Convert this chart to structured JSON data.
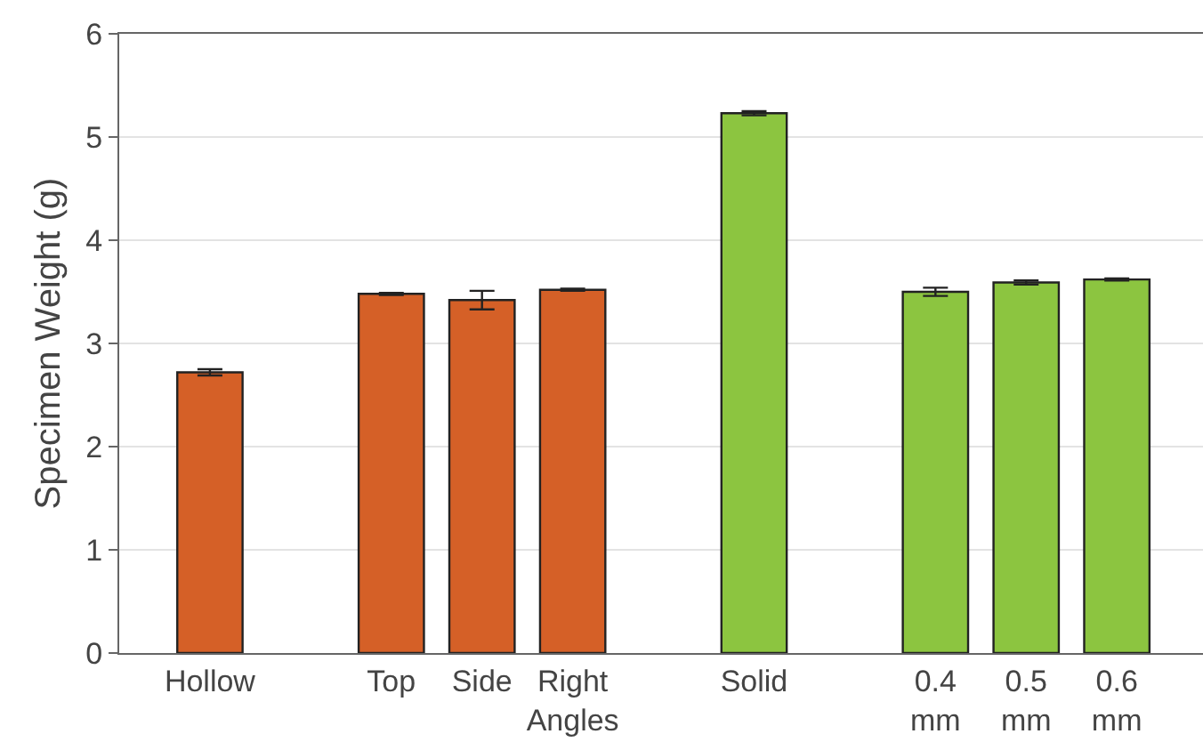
{
  "chart_data": {
    "type": "bar",
    "ylabel": "Specimen Weight (g)",
    "categories": [
      "Hollow",
      null,
      "Top",
      "Side",
      "Right\nAngles",
      null,
      "Solid",
      null,
      "0.4\nmm",
      "0.5\nmm",
      "0.6\nmm"
    ],
    "values": [
      2.72,
      null,
      3.48,
      3.42,
      3.52,
      null,
      5.23,
      null,
      3.5,
      3.59,
      3.62
    ],
    "errors": [
      0.03,
      null,
      0.01,
      0.09,
      0.01,
      null,
      0.02,
      null,
      0.04,
      0.02,
      0.01
    ],
    "colors": [
      "#d56027",
      null,
      "#d56027",
      "#d56027",
      "#d56027",
      null,
      "#8cc540",
      null,
      "#8cc540",
      "#8cc540",
      "#8cc540"
    ],
    "ylim": [
      0,
      6
    ],
    "yticks": [
      0,
      1,
      2,
      3,
      4,
      5,
      6
    ],
    "grid": "y",
    "legend": false
  }
}
